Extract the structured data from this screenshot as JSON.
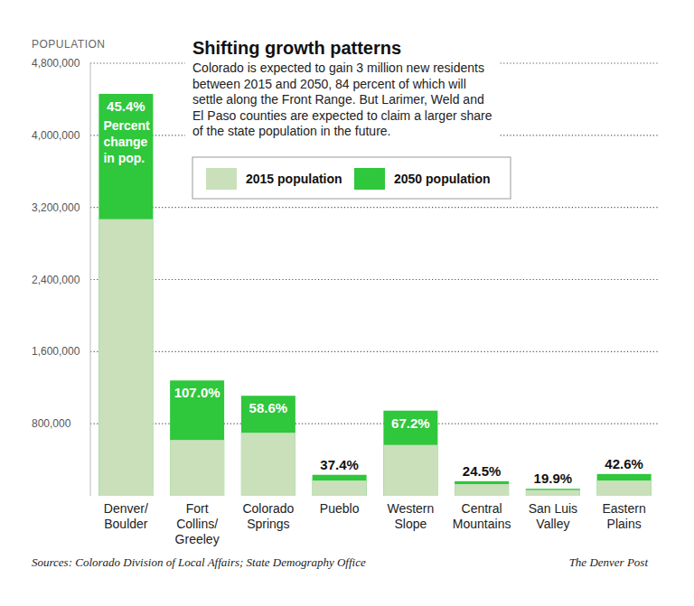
{
  "chart_data": {
    "type": "bar",
    "title": "Shifting growth patterns",
    "subtitle": "Colorado is expected to gain 3 million new residents between 2015 and 2050, 84 percent of which will settle along the Front Range. But Larimer, Weld and El Paso counties are expected to claim a larger share of the state population in the future.",
    "y_label": "POPULATION",
    "source": "Sources: Colorado Division of Local Affairs; State Demography Office",
    "credit": "The Denver Post",
    "categories": [
      "Denver/\nBoulder",
      "Fort\nCollins/\nGreeley",
      "Colorado\nSprings",
      "Pueblo",
      "Western\nSlope",
      "Central\nMountains",
      "San Luis\nValley",
      "Eastern\nPlains"
    ],
    "series": [
      {
        "name": "2015 population",
        "color": "#c9e0ba",
        "values": [
          3070000,
          620000,
          700000,
          170000,
          565000,
          130000,
          65000,
          170000
        ]
      },
      {
        "name": "2050 population",
        "color": "#2fc73c",
        "values": [
          4460000,
          1280000,
          1110000,
          233000,
          945000,
          162000,
          78000,
          242000
        ]
      }
    ],
    "percent_change": {
      "values": [
        45.4,
        107.0,
        58.6,
        37.4,
        67.2,
        24.5,
        19.9,
        42.6
      ],
      "value_labels": [
        "45.4%",
        "107.0%",
        "58.6%",
        "37.4%",
        "67.2%",
        "24.5%",
        "19.9%",
        "42.6%"
      ]
    },
    "percent_change_note": "Percent\nchange\nin pop.",
    "ylim": [
      0,
      4800000
    ],
    "yticks": [
      {
        "value": 800000,
        "label": "800,000"
      },
      {
        "value": 1600000,
        "label": "1,600,000"
      },
      {
        "value": 2400000,
        "label": "2,400,000"
      },
      {
        "value": 3200000,
        "label": "3,200,000"
      },
      {
        "value": 4000000,
        "label": "4,000,000"
      },
      {
        "value": 4800000,
        "label": "4,800,000"
      }
    ],
    "grid": true,
    "stacked": false,
    "legend": "top"
  }
}
